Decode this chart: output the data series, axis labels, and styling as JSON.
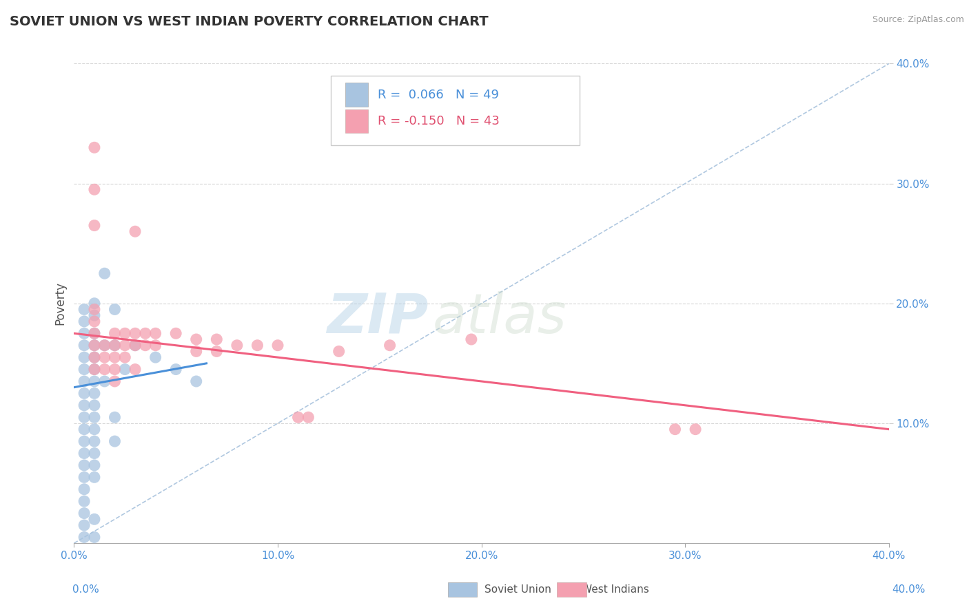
{
  "title": "SOVIET UNION VS WEST INDIAN POVERTY CORRELATION CHART",
  "source": "Source: ZipAtlas.com",
  "ylabel": "Poverty",
  "xmin": 0.0,
  "xmax": 0.4,
  "ymin": 0.0,
  "ymax": 0.4,
  "xticks": [
    0.0,
    0.1,
    0.2,
    0.3,
    0.4
  ],
  "yticks": [
    0.1,
    0.2,
    0.3,
    0.4
  ],
  "xtick_labels": [
    "0.0%",
    "10.0%",
    "20.0%",
    "30.0%",
    "40.0%"
  ],
  "ytick_labels": [
    "10.0%",
    "20.0%",
    "30.0%",
    "40.0%"
  ],
  "soviet_color": "#a8c4e0",
  "west_indian_color": "#f4a0b0",
  "soviet_line_color": "#4a90d9",
  "west_indian_line_color": "#f06080",
  "soviet_R": 0.066,
  "soviet_N": 49,
  "west_indian_R": -0.15,
  "west_indian_N": 43,
  "legend_label_1": "Soviet Union",
  "legend_label_2": "West Indians",
  "watermark_zip": "ZIP",
  "watermark_atlas": "atlas",
  "background_color": "#ffffff",
  "grid_color": "#cccccc",
  "title_color": "#333333",
  "axis_label_color": "#4a90d9",
  "soviet_scatter": [
    [
      0.005,
      0.195
    ],
    [
      0.005,
      0.185
    ],
    [
      0.005,
      0.175
    ],
    [
      0.005,
      0.165
    ],
    [
      0.005,
      0.155
    ],
    [
      0.005,
      0.145
    ],
    [
      0.005,
      0.135
    ],
    [
      0.005,
      0.125
    ],
    [
      0.005,
      0.115
    ],
    [
      0.005,
      0.105
    ],
    [
      0.005,
      0.095
    ],
    [
      0.005,
      0.085
    ],
    [
      0.005,
      0.075
    ],
    [
      0.005,
      0.065
    ],
    [
      0.005,
      0.055
    ],
    [
      0.005,
      0.045
    ],
    [
      0.005,
      0.035
    ],
    [
      0.005,
      0.025
    ],
    [
      0.005,
      0.015
    ],
    [
      0.005,
      0.005
    ],
    [
      0.01,
      0.2
    ],
    [
      0.01,
      0.19
    ],
    [
      0.01,
      0.175
    ],
    [
      0.01,
      0.165
    ],
    [
      0.01,
      0.155
    ],
    [
      0.01,
      0.145
    ],
    [
      0.01,
      0.135
    ],
    [
      0.01,
      0.125
    ],
    [
      0.01,
      0.115
    ],
    [
      0.01,
      0.105
    ],
    [
      0.01,
      0.095
    ],
    [
      0.01,
      0.085
    ],
    [
      0.01,
      0.075
    ],
    [
      0.01,
      0.065
    ],
    [
      0.01,
      0.055
    ],
    [
      0.015,
      0.225
    ],
    [
      0.015,
      0.165
    ],
    [
      0.015,
      0.135
    ],
    [
      0.02,
      0.195
    ],
    [
      0.02,
      0.165
    ],
    [
      0.02,
      0.105
    ],
    [
      0.02,
      0.085
    ],
    [
      0.025,
      0.145
    ],
    [
      0.03,
      0.165
    ],
    [
      0.04,
      0.155
    ],
    [
      0.05,
      0.145
    ],
    [
      0.06,
      0.135
    ],
    [
      0.01,
      0.005
    ],
    [
      0.01,
      0.02
    ]
  ],
  "west_indian_scatter": [
    [
      0.01,
      0.33
    ],
    [
      0.01,
      0.295
    ],
    [
      0.01,
      0.265
    ],
    [
      0.01,
      0.195
    ],
    [
      0.01,
      0.185
    ],
    [
      0.01,
      0.175
    ],
    [
      0.01,
      0.165
    ],
    [
      0.01,
      0.155
    ],
    [
      0.01,
      0.145
    ],
    [
      0.015,
      0.165
    ],
    [
      0.015,
      0.155
    ],
    [
      0.015,
      0.145
    ],
    [
      0.02,
      0.175
    ],
    [
      0.02,
      0.165
    ],
    [
      0.02,
      0.155
    ],
    [
      0.02,
      0.145
    ],
    [
      0.02,
      0.135
    ],
    [
      0.025,
      0.175
    ],
    [
      0.025,
      0.165
    ],
    [
      0.025,
      0.155
    ],
    [
      0.03,
      0.26
    ],
    [
      0.03,
      0.175
    ],
    [
      0.03,
      0.165
    ],
    [
      0.035,
      0.175
    ],
    [
      0.035,
      0.165
    ],
    [
      0.04,
      0.175
    ],
    [
      0.04,
      0.165
    ],
    [
      0.05,
      0.175
    ],
    [
      0.06,
      0.17
    ],
    [
      0.06,
      0.16
    ],
    [
      0.07,
      0.17
    ],
    [
      0.07,
      0.16
    ],
    [
      0.08,
      0.165
    ],
    [
      0.09,
      0.165
    ],
    [
      0.1,
      0.165
    ],
    [
      0.11,
      0.105
    ],
    [
      0.115,
      0.105
    ],
    [
      0.13,
      0.16
    ],
    [
      0.155,
      0.165
    ],
    [
      0.195,
      0.17
    ],
    [
      0.295,
      0.095
    ],
    [
      0.305,
      0.095
    ],
    [
      0.03,
      0.145
    ]
  ],
  "soviet_line_x": [
    0.0,
    0.065
  ],
  "soviet_line_y": [
    0.13,
    0.15
  ],
  "west_indian_line_x": [
    0.0,
    0.4
  ],
  "west_indian_line_y": [
    0.175,
    0.095
  ]
}
